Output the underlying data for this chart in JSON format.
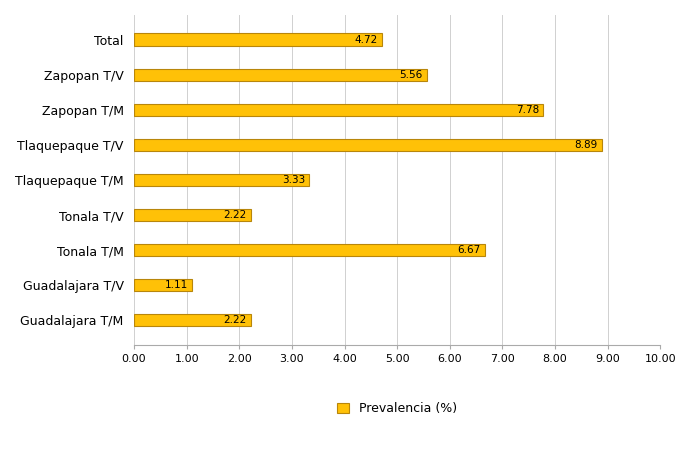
{
  "categories": [
    "Guadalajara T/M",
    "Guadalajara T/V",
    "Tonala T/M",
    "Tonala T/V",
    "Tlaquepaque T/M",
    "Tlaquepaque T/V",
    "Zapopan T/M",
    "Zapopan T/V",
    "Total"
  ],
  "values": [
    2.22,
    1.11,
    6.67,
    2.22,
    3.33,
    8.89,
    7.78,
    5.56,
    4.72
  ],
  "bar_color": "#FFC107",
  "bar_edgecolor": "#B8860B",
  "value_labels": [
    "2.22",
    "1.11",
    "6.67",
    "2.22",
    "3.33",
    "8.89",
    "7.78",
    "5.56",
    "4.72"
  ],
  "xlim": [
    0,
    10.0
  ],
  "xticks": [
    0.0,
    1.0,
    2.0,
    3.0,
    4.0,
    5.0,
    6.0,
    7.0,
    8.0,
    9.0,
    10.0
  ],
  "xtick_labels": [
    "0.00",
    "1.00",
    "2.00",
    "3.00",
    "4.00",
    "5.00",
    "6.00",
    "7.00",
    "8.00",
    "9.00",
    "10.00"
  ],
  "legend_label": "Prevalencia (%)",
  "legend_color": "#FFC107",
  "legend_edgecolor": "#B8860B",
  "background_color": "#ffffff",
  "grid_color": "#d0d0d0",
  "label_fontsize": 9,
  "tick_fontsize": 8,
  "value_fontsize": 7.5,
  "bar_height": 0.35
}
